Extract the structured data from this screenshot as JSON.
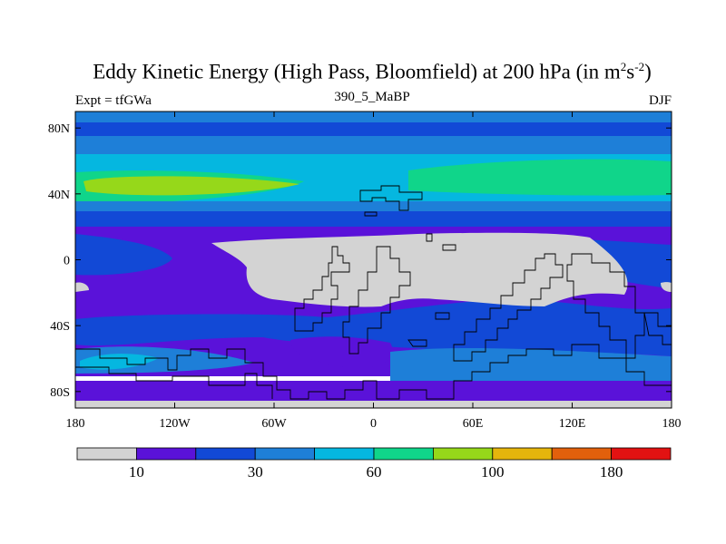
{
  "title": {
    "main": "Eddy Kinetic Energy (High Pass, Bloomfield) at 200 hPa (in m",
    "sup1": "2",
    "mid": "s",
    "sup2": "-2",
    "end": ")"
  },
  "subtitle": "390_5_MaBP",
  "left_label": "Expt = tfGWa",
  "right_label": "DJF",
  "axes": {
    "y_ticks": [
      {
        "value": 80,
        "label": "80N"
      },
      {
        "value": 40,
        "label": "40N"
      },
      {
        "value": 0,
        "label": "0"
      },
      {
        "value": -40,
        "label": "40S"
      },
      {
        "value": -80,
        "label": "80S"
      }
    ],
    "x_ticks": [
      {
        "value": -180,
        "label": "180"
      },
      {
        "value": -120,
        "label": "120W"
      },
      {
        "value": -60,
        "label": "60W"
      },
      {
        "value": 0,
        "label": "0"
      },
      {
        "value": 60,
        "label": "60E"
      },
      {
        "value": 120,
        "label": "120E"
      },
      {
        "value": 180,
        "label": "180"
      }
    ],
    "lon_range": [
      -180,
      180
    ],
    "lat_range": [
      -90,
      90
    ]
  },
  "colorbar": {
    "colors": [
      "#d3d3d3",
      "#5a12d9",
      "#1249d6",
      "#1e7fd8",
      "#05b7e0",
      "#10d58a",
      "#96d81a",
      "#e5b50c",
      "#e2600c",
      "#e21212"
    ],
    "labels": [
      {
        "boundary": 1,
        "text": "10"
      },
      {
        "boundary": 3,
        "text": "30"
      },
      {
        "boundary": 5,
        "text": "60"
      },
      {
        "boundary": 7,
        "text": "100"
      },
      {
        "boundary": 9,
        "text": "180"
      }
    ]
  }
}
